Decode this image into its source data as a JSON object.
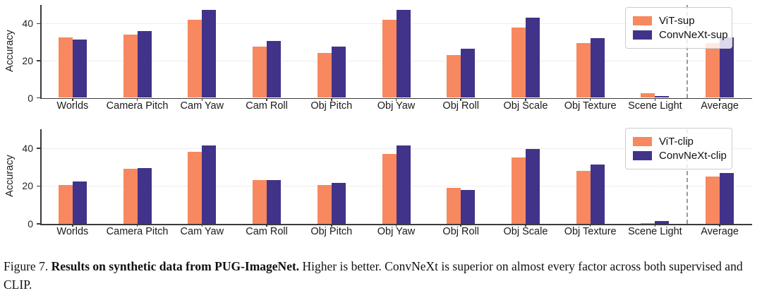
{
  "figure": {
    "caption_label": "Figure 7.",
    "caption_title": "Results on synthetic data from PUG-ImageNet.",
    "caption_text": "Higher is better. ConvNeXt is superior on almost every factor across both supervised and CLIP."
  },
  "colors": {
    "vit_orange": "#F7885F",
    "convnext_indigo": "#41338A",
    "gridline": "#dcdcdc",
    "axis": "#3a3a3a",
    "separator_dash": "#9a9a9a",
    "legend_border": "#cccccc"
  },
  "chart_data": [
    {
      "type": "bar",
      "title": "",
      "xlabel": "",
      "ylabel": "Accuracy",
      "ylim": [
        0,
        50
      ],
      "yticks": [
        0,
        20,
        40
      ],
      "grid": "horizontal dotted at 20 and 40",
      "legend_position": "upper right",
      "separator_before": "Average",
      "categories": [
        "Worlds",
        "Camera Pitch",
        "Cam Yaw",
        "Cam Roll",
        "Obj Pitch",
        "Obj Yaw",
        "Obj Roll",
        "Obj Scale",
        "Obj Texture",
        "Scene Light",
        "Average"
      ],
      "series": [
        {
          "name": "ViT-sup",
          "color": "#F7885F",
          "values": [
            32.5,
            34,
            42,
            27.5,
            24,
            42,
            23,
            38,
            29.5,
            2.5,
            29.5
          ]
        },
        {
          "name": "ConvNeXt-sup",
          "color": "#41338A",
          "values": [
            31.5,
            36,
            47.5,
            30.5,
            27.5,
            47.5,
            26.5,
            43,
            32,
            1,
            32.5
          ]
        }
      ]
    },
    {
      "type": "bar",
      "title": "",
      "xlabel": "",
      "ylabel": "Accuracy",
      "ylim": [
        0,
        50
      ],
      "yticks": [
        0,
        20,
        40
      ],
      "grid": "horizontal dotted at 20 and 40",
      "legend_position": "upper right",
      "separator_before": "Average",
      "categories": [
        "Worlds",
        "Camera Pitch",
        "Cam Yaw",
        "Cam Roll",
        "Obj Pitch",
        "Obj Yaw",
        "Obj Roll",
        "Obj Scale",
        "Obj Texture",
        "Scene Light",
        "Average"
      ],
      "series": [
        {
          "name": "ViT-clip",
          "color": "#F7885F",
          "values": [
            20.5,
            29,
            38,
            23,
            20.5,
            37,
            19,
            35,
            28,
            0.5,
            25
          ]
        },
        {
          "name": "ConvNeXt-clip",
          "color": "#41338A",
          "values": [
            22.5,
            29.5,
            41.5,
            23,
            21.5,
            41.5,
            18,
            39.5,
            31.5,
            1.5,
            27
          ]
        }
      ]
    }
  ]
}
